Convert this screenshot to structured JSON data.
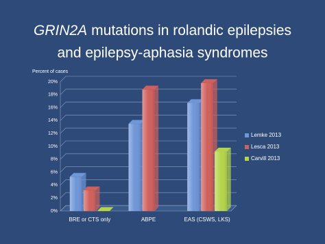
{
  "chart_data": {
    "type": "bar3d",
    "title_italic": "GRIN2A",
    "title": "mutations in rolandic epilepsies",
    "title_line2": "and epilepsy-aphasia syndromes",
    "ylabel": "Percent of cases",
    "categories": [
      "BRE or CTS only",
      "ABPE",
      "EAS (CSWS, LKS)"
    ],
    "series": [
      {
        "name": "Lemke 2013",
        "color": "#6f96d8",
        "values": [
          5.3,
          13.5,
          16.7
        ]
      },
      {
        "name": "Lesca 2013",
        "color": "#d0605c",
        "values": [
          3.2,
          18.8,
          19.8
        ]
      },
      {
        "name": "Carvill 2013",
        "color": "#b4d54a",
        "values": [
          0,
          null,
          9.2
        ]
      }
    ],
    "ylim": [
      0,
      20
    ],
    "yticks": [
      {
        "value": 0,
        "label": "0%"
      },
      {
        "value": 2,
        "label": "2%"
      },
      {
        "value": 4,
        "label": "4%"
      },
      {
        "value": 6,
        "label": "6%"
      },
      {
        "value": 8,
        "label": "8%"
      },
      {
        "value": 10,
        "label": "10%"
      },
      {
        "value": 12,
        "label": "12%"
      },
      {
        "value": 14,
        "label": "14%"
      },
      {
        "value": 16,
        "label": "16%"
      },
      {
        "value": 18,
        "label": "18%"
      },
      {
        "value": 20,
        "label": "20%"
      }
    ],
    "grid": true,
    "legend": "right"
  }
}
